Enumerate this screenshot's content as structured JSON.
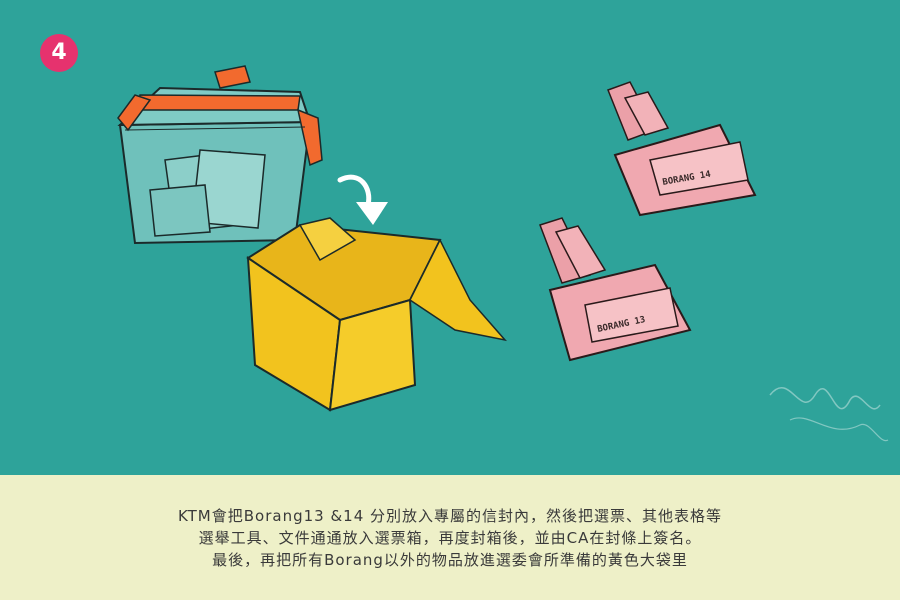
{
  "step_badge": "4",
  "illustration": {
    "envelope_top_label": "BORANG 14",
    "envelope_bottom_label": "BORANG 13",
    "colors": {
      "background": "#2ea39a",
      "caption_band": "#eef0c8",
      "badge": "#e6326e",
      "ballot_box_tape": "#f26a2e",
      "yellow_bag": "#f2c31e",
      "envelope": "#f0a8b0"
    }
  },
  "caption": {
    "lines": [
      "KTM會把Borang13 &14 分別放入專屬的信封內，然後把選票、其他表格等",
      "選舉工具、文件通通放入選票箱，再度封箱後，並由CA在封條上簽名。",
      "最後，再把所有Borang以外的物品放進選委會所準備的黃色大袋里"
    ]
  }
}
